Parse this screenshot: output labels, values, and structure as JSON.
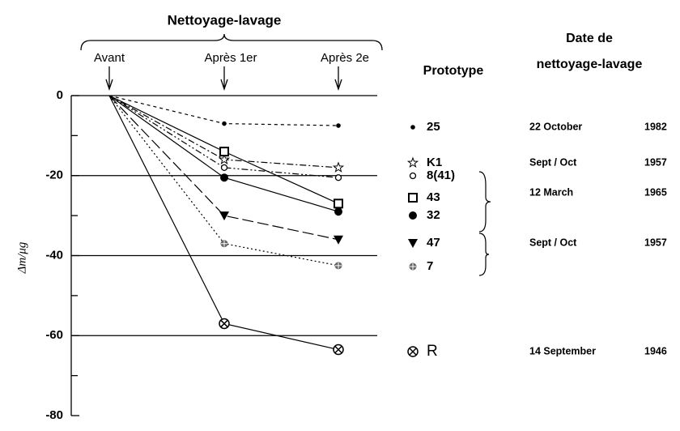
{
  "chart_data": {
    "type": "line",
    "title": "Nettoyage-lavage",
    "y_label": "Δm/μg",
    "legend_title": "Prototype",
    "date_title": [
      "Date de",
      "nettoyage-lavage"
    ],
    "categories": [
      "Avant",
      "Après 1er",
      "Après 2e"
    ],
    "ylim": [
      0,
      -80
    ],
    "yticks": [
      0,
      -20,
      -40,
      -60,
      -80
    ],
    "minor_yticks": [
      -10,
      -30,
      -50,
      -70
    ],
    "grid": true,
    "color": "#000000",
    "series": [
      {
        "name": "25",
        "marker": "dot",
        "dash": "4 4",
        "values": [
          0,
          -7,
          -7.5
        ]
      },
      {
        "name": "K1",
        "marker": "star",
        "dash": "8 3 2 3",
        "values": [
          0,
          -16,
          -18
        ]
      },
      {
        "name": "8(41)",
        "marker": "circle",
        "dash": "8 3 2 3 2 3",
        "values": [
          0,
          -18,
          -20.5
        ]
      },
      {
        "name": "43",
        "marker": "square",
        "dash": "",
        "values": [
          0,
          -14,
          -27
        ]
      },
      {
        "name": "32",
        "marker": "disc",
        "dash": "",
        "values": [
          0,
          -20.5,
          -29
        ]
      },
      {
        "name": "47",
        "marker": "triangle",
        "dash": "14 5",
        "values": [
          0,
          -30,
          -36
        ]
      },
      {
        "name": "7",
        "marker": "asterisk",
        "dash": "2 3",
        "values": [
          0,
          -37,
          -42.5
        ]
      },
      {
        "name": "R",
        "marker": "cross",
        "dash": "",
        "values": [
          0,
          -57,
          -63.5
        ]
      }
    ],
    "dates": [
      {
        "label": "22 October",
        "year": "1982"
      },
      {
        "label": "Sept / Oct",
        "year": "1957"
      },
      {
        "label": "12 March",
        "year": "1965"
      },
      {
        "label": "Sept / Oct",
        "year": "1957"
      },
      {
        "label": "14 September",
        "year": "1946"
      }
    ]
  }
}
